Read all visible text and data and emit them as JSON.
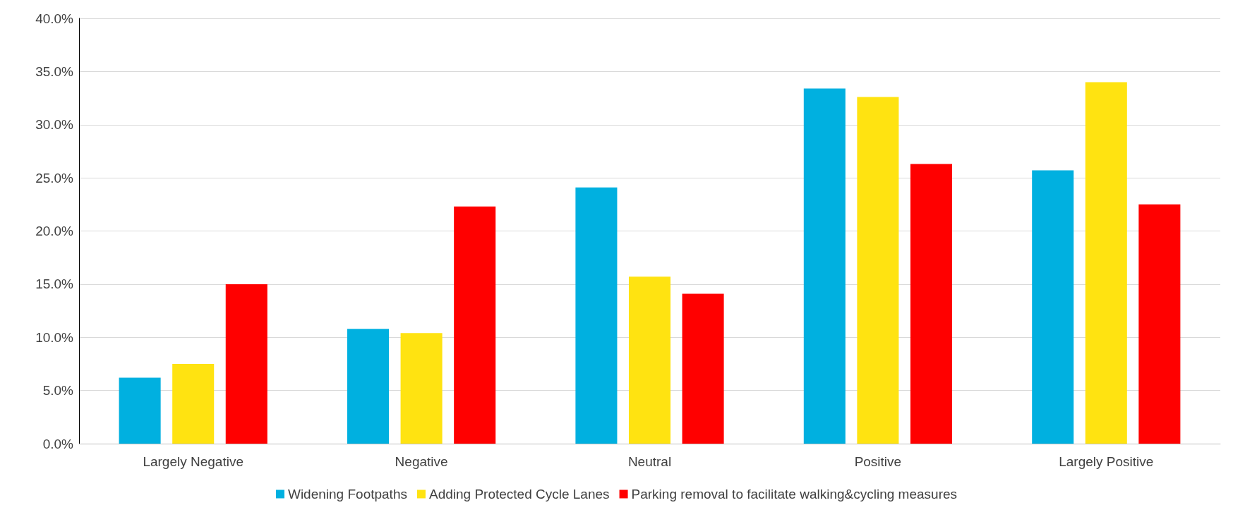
{
  "chart_data": {
    "type": "bar",
    "categories": [
      "Largely Negative",
      "Negative",
      "Neutral",
      "Positive",
      "Largely Positive"
    ],
    "series": [
      {
        "name": "Widening Footpaths",
        "color": "#00b0e0",
        "values": [
          6.2,
          10.8,
          24.1,
          33.4,
          25.7
        ]
      },
      {
        "name": "Adding Protected Cycle Lanes",
        "color": "#ffe311",
        "values": [
          7.5,
          10.4,
          15.7,
          32.6,
          34.0
        ]
      },
      {
        "name": "Parking removal to facilitate walking&cycling measures",
        "color": "#ff0000",
        "values": [
          15.0,
          22.3,
          14.1,
          26.3,
          22.5
        ]
      }
    ],
    "ylim": [
      0,
      40
    ],
    "yticks": [
      {
        "value": 0,
        "label": "0.0%"
      },
      {
        "value": 5,
        "label": "5.0%"
      },
      {
        "value": 10,
        "label": "10.0%"
      },
      {
        "value": 15,
        "label": "15.0%"
      },
      {
        "value": 20,
        "label": "20.0%"
      },
      {
        "value": 25,
        "label": "25.0%"
      },
      {
        "value": 30,
        "label": "30.0%"
      },
      {
        "value": 35,
        "label": "35.0%"
      },
      {
        "value": 40,
        "label": "40.0%"
      }
    ],
    "grid": "y",
    "legend": "bottom"
  }
}
